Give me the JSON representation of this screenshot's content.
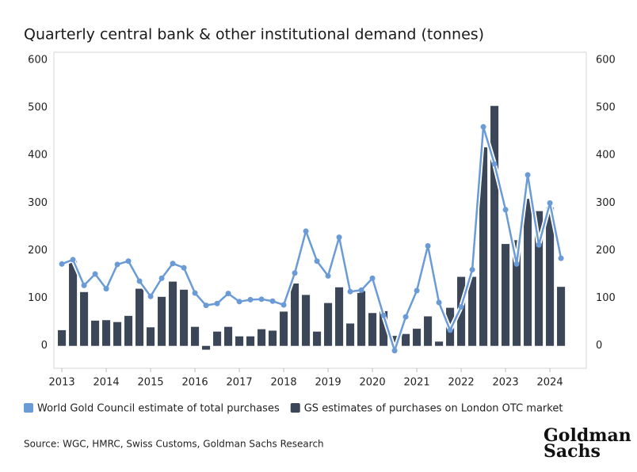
{
  "chart_data": {
    "type": "bar_line",
    "title": "Quarterly central bank & other institutional demand (tonnes)",
    "source": "Source: WGC, HMRC, Swiss Customs, Goldman Sachs Research",
    "logo": [
      "Goldman",
      "Sachs"
    ],
    "x": [
      2013,
      2013.25,
      2013.5,
      2013.75,
      2014,
      2014.25,
      2014.5,
      2014.75,
      2015,
      2015.25,
      2015.5,
      2015.75,
      2016,
      2016.25,
      2016.5,
      2016.75,
      2017,
      2017.25,
      2017.5,
      2017.75,
      2018,
      2018.25,
      2018.5,
      2018.75,
      2019,
      2019.25,
      2019.5,
      2019.75,
      2020,
      2020.25,
      2020.5,
      2020.75,
      2021,
      2021.25,
      2021.5,
      2021.75,
      2022,
      2022.25,
      2022.5,
      2022.75,
      2023,
      2023.25,
      2023.5,
      2023.75,
      2024,
      2024.25
    ],
    "series": [
      {
        "name": "World Gold Council estimate of total purchases",
        "color": "#6a9bd6",
        "kind": "line",
        "values": [
          172,
          181,
          127,
          151,
          120,
          171,
          178,
          136,
          104,
          142,
          173,
          164,
          111,
          85,
          89,
          110,
          93,
          97,
          98,
          94,
          86,
          153,
          241,
          178,
          147,
          228,
          114,
          117,
          142,
          64,
          -10,
          61,
          116,
          210,
          91,
          33,
          82,
          160,
          460,
          382,
          286,
          172,
          359,
          212,
          300,
          184
        ]
      },
      {
        "name": "GS estimates of purchases on London OTC market",
        "color": "#3b4758",
        "kind": "bar",
        "axis": "y2",
        "values": [
          33,
          178,
          113,
          53,
          54,
          50,
          63,
          120,
          39,
          103,
          135,
          118,
          40,
          -8,
          30,
          40,
          20,
          20,
          35,
          32,
          72,
          131,
          107,
          30,
          90,
          123,
          47,
          115,
          69,
          73,
          21,
          25,
          36,
          62,
          9,
          80,
          145,
          145,
          417,
          504,
          214,
          222,
          309,
          283,
          291,
          124
        ]
      }
    ],
    "xlim": [
      2012.82,
      2024.82
    ],
    "xticks": [
      2013,
      2014,
      2015,
      2016,
      2017,
      2018,
      2019,
      2020,
      2021,
      2022,
      2023,
      2024
    ],
    "ylim": [
      -47,
      600
    ],
    "yticks": [
      0,
      100,
      200,
      300,
      400,
      500,
      600
    ],
    "y2lim": [
      -47,
      600
    ],
    "y2ticks": [
      0,
      100,
      200,
      300,
      400,
      500,
      600
    ]
  }
}
